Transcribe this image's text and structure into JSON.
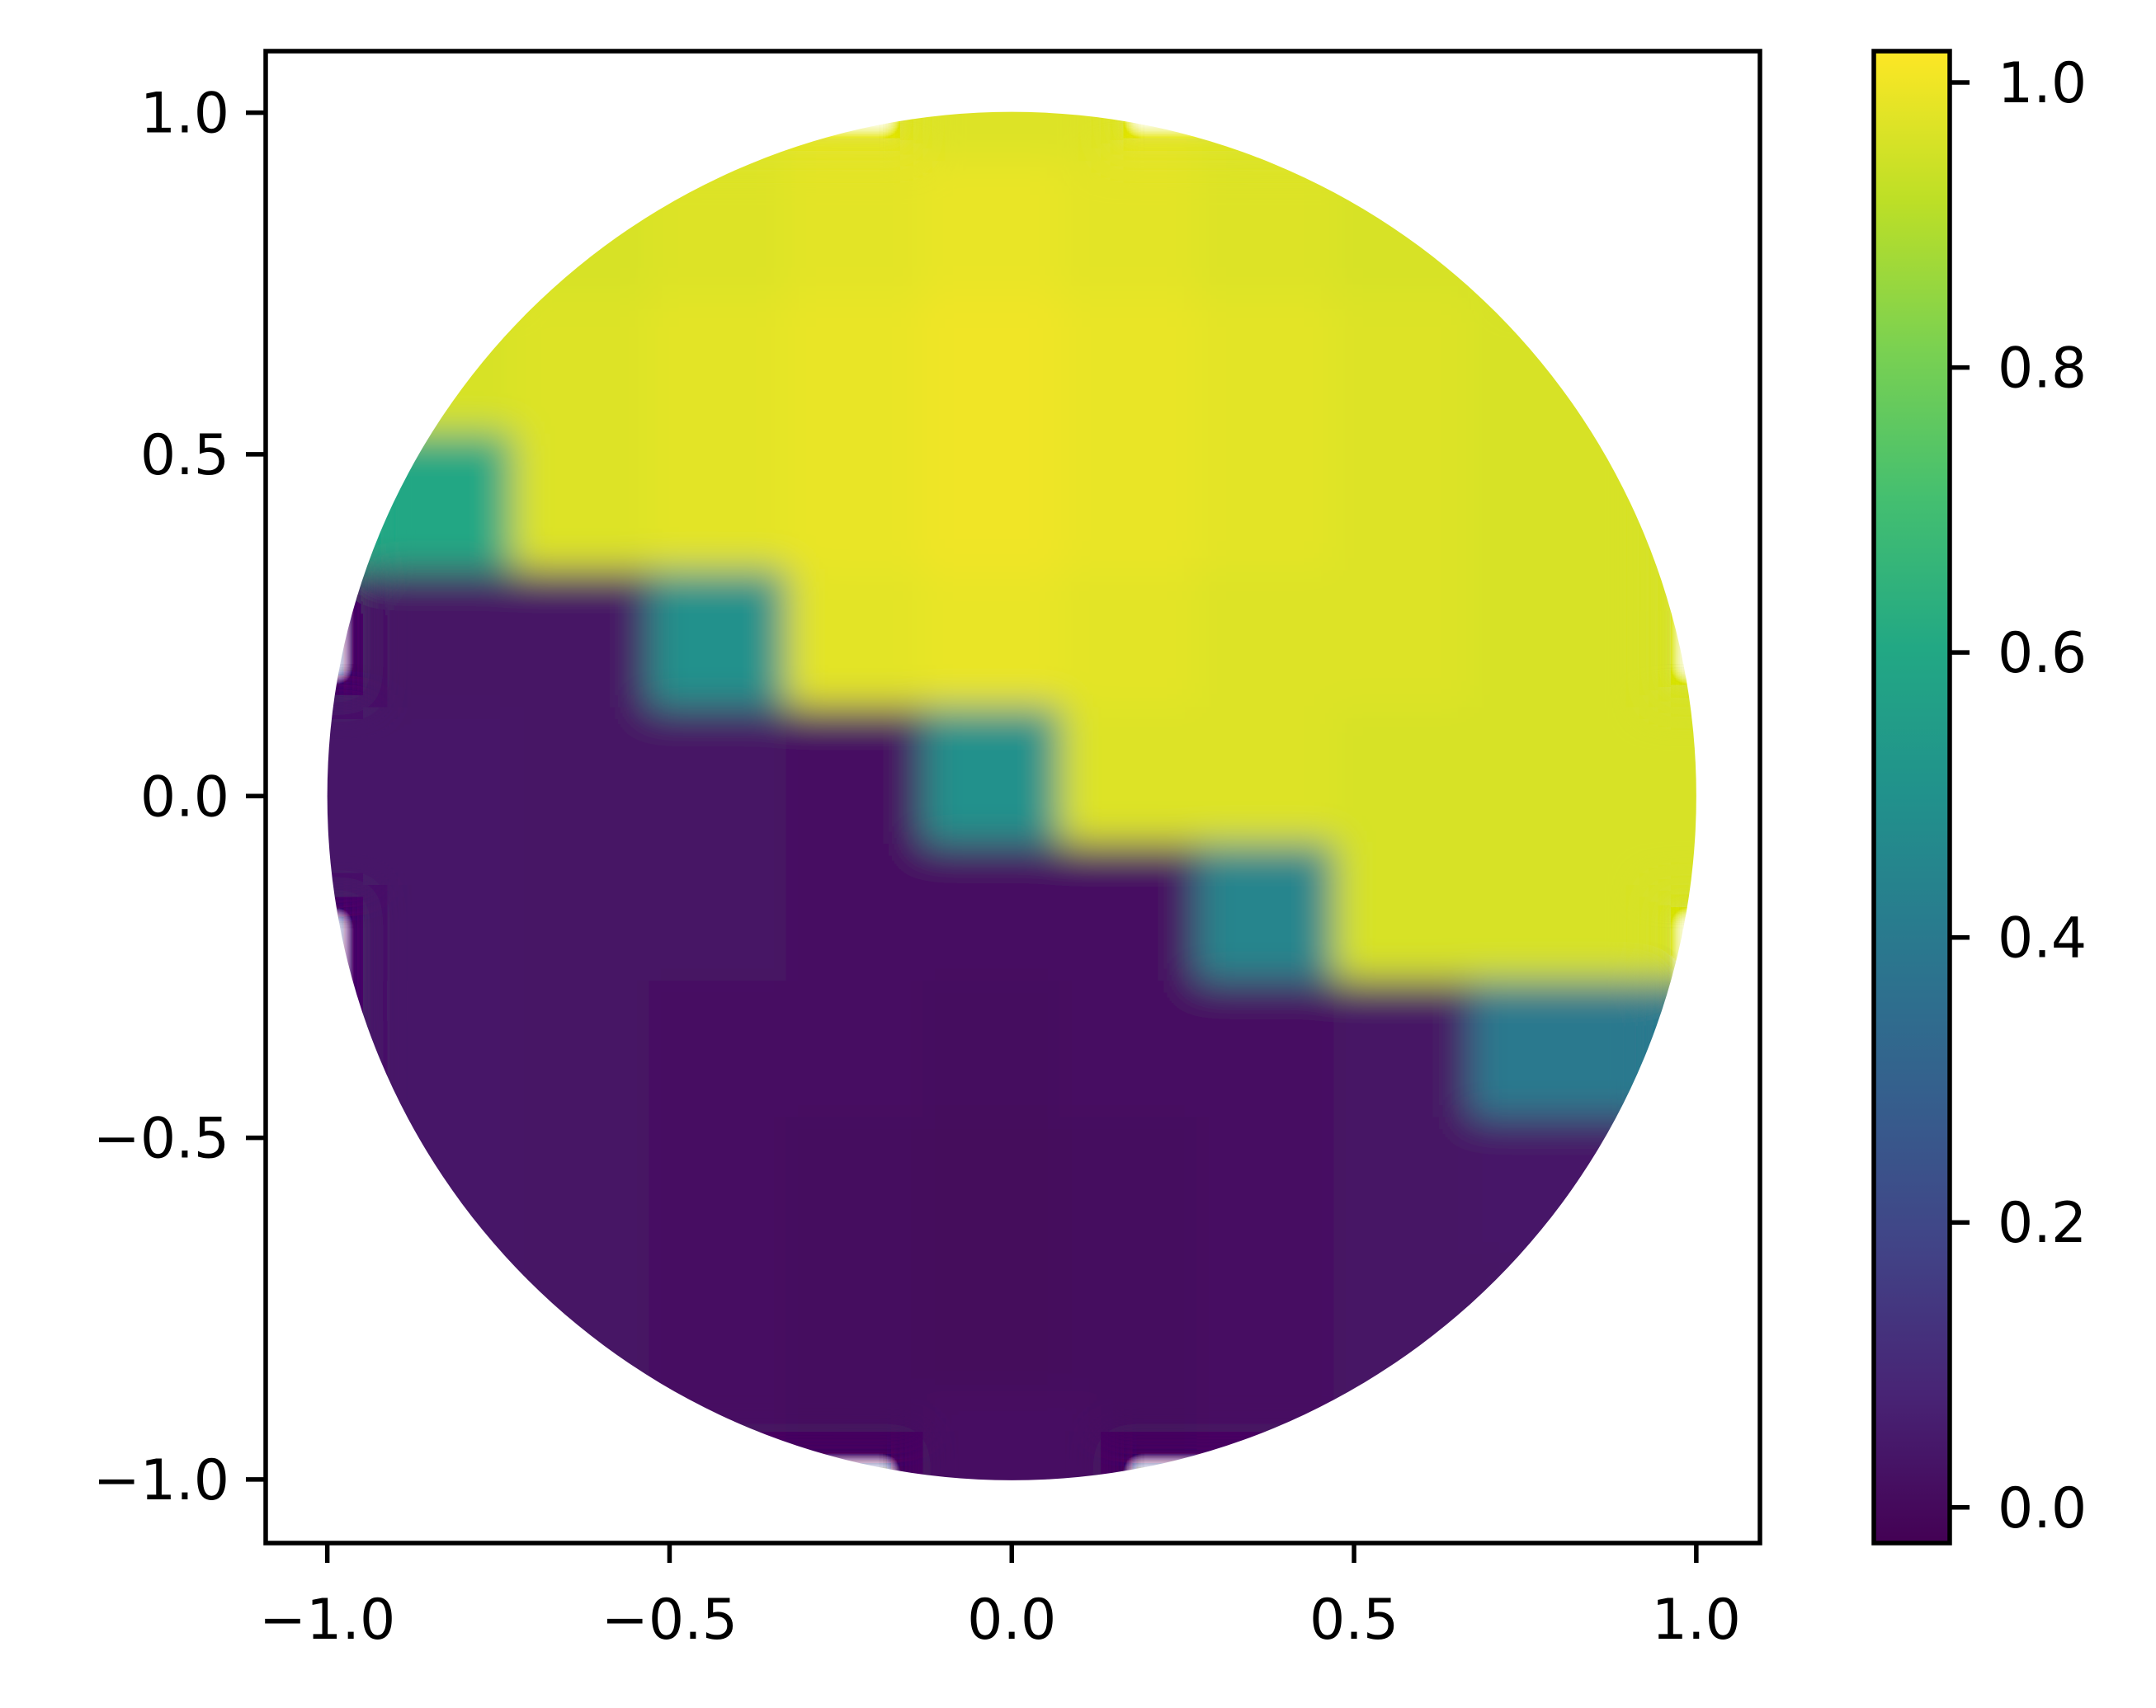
{
  "chart_data": {
    "type": "heatmap",
    "colormap": "viridis",
    "x": [
      -1,
      -0.8,
      -0.6,
      -0.4,
      -0.2,
      0,
      0.2,
      0.4,
      0.6,
      0.8,
      1
    ],
    "y": [
      1,
      0.8,
      0.6,
      0.4,
      0.2,
      0,
      -0.2,
      -0.4,
      -0.6,
      -0.8,
      -1
    ],
    "z": [
      [
        null,
        null,
        null,
        null,
        null,
        0.97,
        null,
        null,
        null,
        null,
        null
      ],
      [
        null,
        null,
        0.96,
        0.97,
        0.98,
        0.99,
        0.98,
        0.97,
        0.96,
        null,
        null
      ],
      [
        null,
        0.96,
        0.97,
        0.98,
        0.99,
        1.0,
        0.99,
        0.98,
        0.97,
        0.96,
        null
      ],
      [
        null,
        0.6,
        0.97,
        0.98,
        0.99,
        1.0,
        0.99,
        0.98,
        0.97,
        0.96,
        null
      ],
      [
        null,
        0.03,
        0.03,
        0.5,
        0.98,
        0.99,
        0.98,
        0.97,
        0.97,
        0.96,
        null
      ],
      [
        0.04,
        0.04,
        0.03,
        0.03,
        0.02,
        0.5,
        0.97,
        0.97,
        0.96,
        0.96,
        0.96
      ],
      [
        null,
        0.04,
        0.03,
        0.03,
        0.02,
        0.02,
        0.02,
        0.45,
        0.96,
        0.96,
        null
      ],
      [
        null,
        0.04,
        0.03,
        0.02,
        0.02,
        0.01,
        0.02,
        0.02,
        0.03,
        0.4,
        null
      ],
      [
        null,
        0.04,
        0.03,
        0.02,
        0.01,
        0.0,
        0.01,
        0.02,
        0.03,
        0.04,
        null
      ],
      [
        null,
        null,
        0.03,
        0.02,
        0.01,
        0.0,
        0.01,
        0.02,
        0.03,
        null,
        null
      ],
      [
        null,
        null,
        null,
        null,
        null,
        0.02,
        null,
        null,
        null,
        null,
        null
      ]
    ],
    "xlim": [
      -1.09,
      1.093
    ],
    "ylim": [
      -1.093,
      1.09
    ],
    "xticks": [
      {
        "value": -1,
        "label": "−1.0"
      },
      {
        "value": -0.5,
        "label": "−0.5"
      },
      {
        "value": 0,
        "label": "0.0"
      },
      0.5,
      {
        "value": 1,
        "label": "1.0"
      }
    ],
    "yticks": [
      {
        "value": -1,
        "label": "−1.0"
      },
      {
        "value": -0.5,
        "label": "−0.5"
      },
      {
        "value": 0,
        "label": "0.0"
      },
      0.5,
      {
        "value": 1,
        "label": "1.0"
      }
    ],
    "clim": [
      -0.025,
      1.022
    ],
    "cticks": [
      {
        "value": 0,
        "label": "0.0"
      },
      0.2,
      0.4,
      0.6,
      0.8,
      {
        "value": 1,
        "label": "1.0"
      }
    ]
  }
}
